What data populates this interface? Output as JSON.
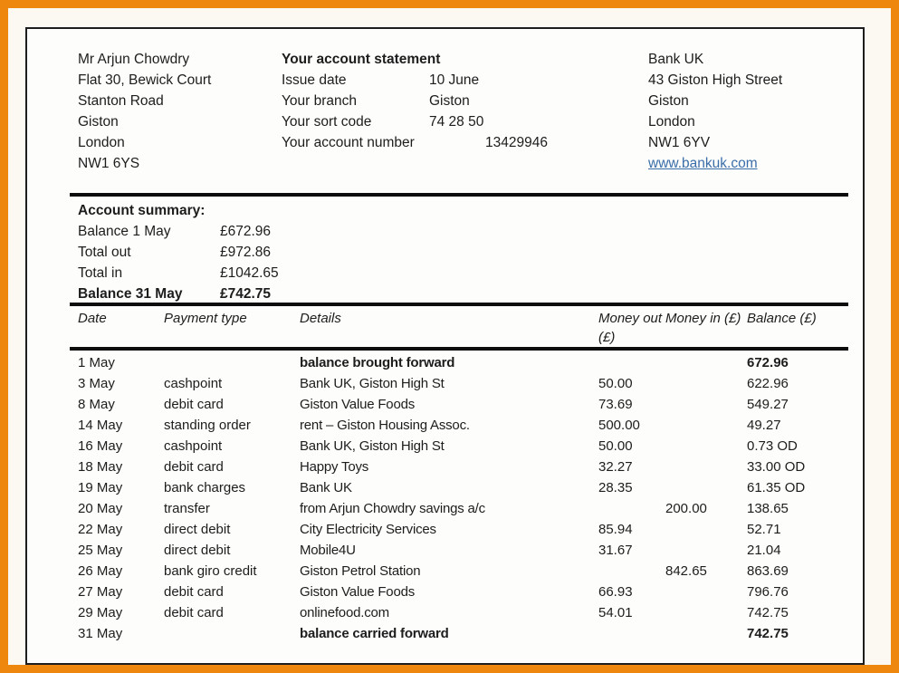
{
  "accent_color": "#ED870D",
  "customer": {
    "name": "Mr Arjun Chowdry",
    "address_line1": "Flat 30, Bewick Court",
    "address_line2": "Stanton Road",
    "address_line3": "Giston",
    "address_line4": "London",
    "postcode": "NW1 6YS"
  },
  "statement": {
    "title": "Your account statement",
    "fields": [
      {
        "label": "Issue date",
        "value": "10 June"
      },
      {
        "label": "Your branch",
        "value": "Giston"
      },
      {
        "label": "Your sort code",
        "value": "74 28 50"
      },
      {
        "label": "Your account number",
        "value": "13429946"
      }
    ]
  },
  "bank": {
    "name": "Bank UK",
    "address_line1": "43 Giston High Street",
    "address_line2": "Giston",
    "address_line3": "London",
    "postcode": "NW1 6YV",
    "website": "www.bankuk.com"
  },
  "summary": {
    "title": "Account summary:",
    "rows": [
      {
        "label": "Balance 1 May",
        "value": "£672.96"
      },
      {
        "label": "Total out",
        "value": "£972.86"
      },
      {
        "label": "Total in",
        "value": "£1042.65"
      },
      {
        "label": "Balance 31 May",
        "value": "£742.75"
      }
    ]
  },
  "transactions": {
    "headers": [
      "Date",
      "Payment type",
      "Details",
      "Money out (£)",
      "Money in (£)",
      "Balance (£)"
    ],
    "rows": [
      {
        "date": "1 May",
        "payment_type": "",
        "details": "balance brought forward",
        "money_out": "",
        "money_in": "",
        "balance": "672.96"
      },
      {
        "date": "3 May",
        "payment_type": "cashpoint",
        "details": "Bank UK, Giston High St",
        "money_out": "50.00",
        "money_in": "",
        "balance": "622.96"
      },
      {
        "date": "8 May",
        "payment_type": "debit card",
        "details": "Giston Value Foods",
        "money_out": "73.69",
        "money_in": "",
        "balance": "549.27"
      },
      {
        "date": "14 May",
        "payment_type": "standing order",
        "details": "rent – Giston Housing Assoc.",
        "money_out": "500.00",
        "money_in": "",
        "balance": "49.27"
      },
      {
        "date": "16 May",
        "payment_type": "cashpoint",
        "details": "Bank UK, Giston High St",
        "money_out": "50.00",
        "money_in": "",
        "balance": "0.73 OD"
      },
      {
        "date": "18 May",
        "payment_type": "debit card",
        "details": "Happy Toys",
        "money_out": "32.27",
        "money_in": "",
        "balance": "33.00 OD"
      },
      {
        "date": "19 May",
        "payment_type": "bank charges",
        "details": "Bank UK",
        "money_out": "28.35",
        "money_in": "",
        "balance": "61.35 OD"
      },
      {
        "date": "20 May",
        "payment_type": "transfer",
        "details": "from Arjun Chowdry savings a/c",
        "money_out": "",
        "money_in": "200.00",
        "balance": "138.65"
      },
      {
        "date": "22 May",
        "payment_type": "direct debit",
        "details": "City Electricity Services",
        "money_out": "85.94",
        "money_in": "",
        "balance": "52.71"
      },
      {
        "date": "25 May",
        "payment_type": "direct debit",
        "details": "Mobile4U",
        "money_out": "31.67",
        "money_in": "",
        "balance": "21.04"
      },
      {
        "date": "26 May",
        "payment_type": "bank giro credit",
        "details": "Giston Petrol Station",
        "money_out": "",
        "money_in": "842.65",
        "balance": "863.69"
      },
      {
        "date": "27 May",
        "payment_type": "debit card",
        "details": "Giston Value Foods",
        "money_out": "66.93",
        "money_in": "",
        "balance": "796.76"
      },
      {
        "date": "29 May",
        "payment_type": "debit card",
        "details": "onlinefood.com",
        "money_out": "54.01",
        "money_in": "",
        "balance": "742.75"
      },
      {
        "date": "31 May",
        "payment_type": "",
        "details": "balance carried forward",
        "money_out": "",
        "money_in": "",
        "balance": "742.75"
      }
    ]
  }
}
